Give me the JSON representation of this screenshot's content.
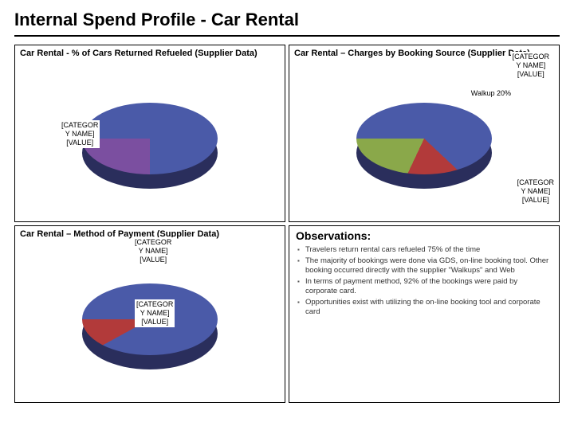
{
  "page_title": "Internal Spend Profile - Car Rental",
  "background_color": "#ffffff",
  "charts": {
    "refuel": {
      "title": "Car Rental - % of Cars Returned Refueled (Supplier Data)",
      "type": "pie-3d",
      "slices": [
        {
          "label": "[CATEGOR\nY NAME]\n[VALUE]",
          "value": 75,
          "color": "#4a5aa8"
        },
        {
          "label": "[CATEGOR\nY NAME]\n[VALUE]",
          "value": 25,
          "color": "#7b4fa0"
        }
      ],
      "shadow_color": "#2a2e5c"
    },
    "booking": {
      "title": "Car Rental – Charges by Booking Source (Supplier Data)",
      "type": "pie-3d",
      "ext_label": "[CATEGOR\nY NAME]\n[VALUE]",
      "slices": [
        {
          "label": "[CATEGOR\nY NAME]\n[VALUE]",
          "value": 62,
          "color": "#4a5aa8"
        },
        {
          "label": "Walkup 20%",
          "value": 20,
          "color": "#b23a3a"
        },
        {
          "label": "[CATEGOR\nY NAME]\n[VALUE]",
          "value": 18,
          "color": "#8aa84a"
        }
      ],
      "shadow_color": "#2a2e5c"
    },
    "payment": {
      "title": "Car Rental – Method of Payment (Supplier Data)",
      "type": "pie-3d",
      "ext_label": "[CATEGOR\nY NAME]\n[VALUE]",
      "slices": [
        {
          "label": "[CATEGOR\nY NAME]\n[VALUE]",
          "value": 92,
          "color": "#4a5aa8"
        },
        {
          "label": "",
          "value": 8,
          "color": "#b23a3a"
        }
      ],
      "shadow_color": "#2a2e5c"
    }
  },
  "observations": {
    "title": "Observations:",
    "items": [
      "Travelers return rental cars refueled 75% of the time",
      "The majority of bookings were done via GDS, on-line booking tool.  Other booking occurred directly with the supplier \"Walkups\" and Web",
      "In terms of payment method, 92% of the bookings were paid by corporate card.",
      "Opportunities exist with utilizing the on-line booking tool and corporate card"
    ]
  }
}
